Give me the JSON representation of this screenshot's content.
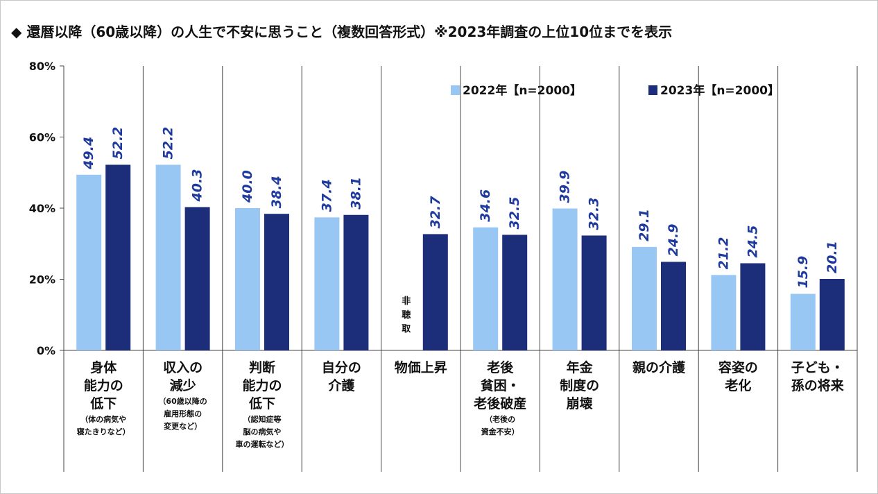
{
  "title": "◆ 還暦以降（60歳以降）の人生で不安に思うこと（複数回答形式）※2023年調査の上位10位までを表示",
  "chart_data": {
    "type": "bar",
    "yticks": [
      "0%",
      "20%",
      "40%",
      "60%",
      "80%"
    ],
    "ylim": [
      0,
      80
    ],
    "grid": false,
    "legend_position": "top-right",
    "categories": [
      {
        "main": [
          "身体",
          "能力の",
          "低下"
        ],
        "sub": [
          "（体の病気や",
          "寝たきりなど）"
        ]
      },
      {
        "main": [
          "収入の",
          "減少"
        ],
        "sub": [
          "（60歳以降の",
          "雇用形態の",
          "変更など）"
        ]
      },
      {
        "main": [
          "判断",
          "能力の",
          "低下"
        ],
        "sub": [
          "（認知症等",
          "脳の病気や",
          "車の運転など）"
        ]
      },
      {
        "main": [
          "自分の",
          "介護"
        ],
        "sub": []
      },
      {
        "main": [
          "物価上昇"
        ],
        "sub": []
      },
      {
        "main": [
          "老後",
          "貧困・",
          "老後破産"
        ],
        "sub": [
          "（老後の",
          "資金不安）"
        ]
      },
      {
        "main": [
          "年金",
          "制度の",
          "崩壊"
        ],
        "sub": []
      },
      {
        "main": [
          "親の介護"
        ],
        "sub": []
      },
      {
        "main": [
          "容姿の",
          "老化"
        ],
        "sub": []
      },
      {
        "main": [
          "子ども・",
          "孫の将来"
        ],
        "sub": []
      }
    ],
    "series": [
      {
        "name": "2022年【n=2000】",
        "color": "#99c7f4",
        "values": [
          49.4,
          52.2,
          40.0,
          37.4,
          null,
          34.6,
          39.9,
          29.1,
          21.2,
          15.9
        ],
        "labels": [
          "49.4",
          "52.2",
          "40.0",
          "37.4",
          null,
          "34.6",
          "39.9",
          "29.1",
          "21.2",
          "15.9"
        ]
      },
      {
        "name": "2023年【n=2000】",
        "color": "#1c2e7a",
        "values": [
          52.2,
          40.3,
          38.4,
          38.1,
          32.7,
          32.5,
          32.3,
          24.9,
          24.5,
          20.1
        ],
        "labels": [
          "52.2",
          "40.3",
          "38.4",
          "38.1",
          "32.7",
          "32.5",
          "32.3",
          "24.9",
          "24.5",
          "20.1"
        ]
      }
    ],
    "not_asked_label": [
      "非",
      "聴",
      "取"
    ]
  }
}
